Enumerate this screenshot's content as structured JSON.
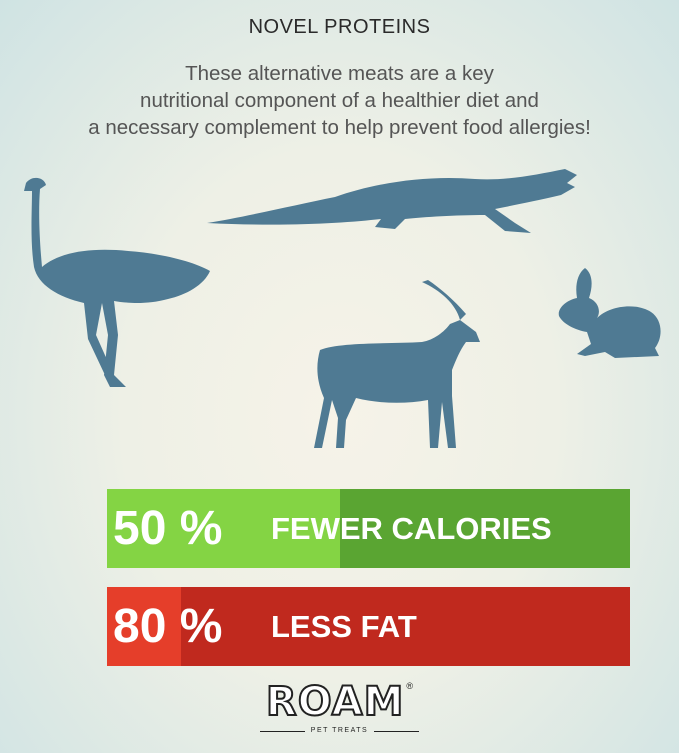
{
  "header": {
    "title": "NOVEL PROTEINS",
    "subtitle_lines": [
      "These alternative meats are a key",
      "nutritional component of a healthier diet and",
      "a necessary complement to help prevent food allergies!"
    ]
  },
  "animals": [
    "ostrich-icon",
    "alligator-icon",
    "antelope-icon",
    "rabbit-icon"
  ],
  "stats": [
    {
      "percent": "50 %",
      "label": "FEWER CALORIES",
      "color_light": "#84d444",
      "color_dark": "#5aa532"
    },
    {
      "percent": "80 %",
      "label": "LESS FAT",
      "color_light": "#e53e2a",
      "color_dark": "#c0291e"
    }
  ],
  "logo": {
    "name": "ROAM",
    "mark": "®",
    "tagline": "PET TREATS"
  },
  "colors": {
    "silhouette": "#4f7a93"
  }
}
